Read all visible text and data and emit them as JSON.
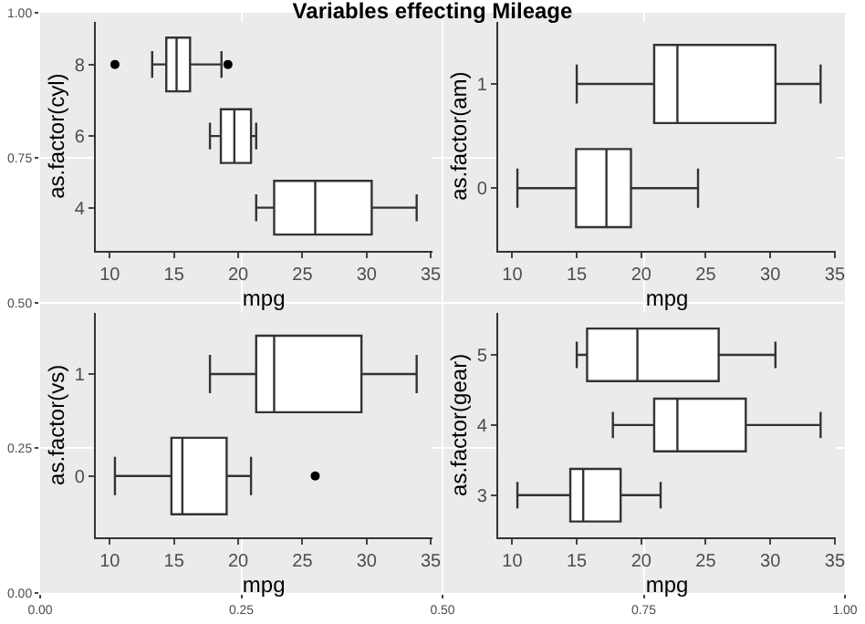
{
  "chart_data": [
    {
      "type": "scatter",
      "title": "Variables effecting Mileage",
      "xlim": [
        0,
        1
      ],
      "ylim": [
        0,
        1
      ],
      "grid": true,
      "xticks": [
        {
          "value": 0,
          "label": "0.00"
        },
        {
          "value": 0.25,
          "label": "0.25"
        },
        {
          "value": 0.5,
          "label": "0.50"
        },
        {
          "value": 0.75,
          "label": "0.75"
        },
        {
          "value": 1,
          "label": "1.00"
        }
      ],
      "yticks": [
        {
          "value": 0,
          "label": "0.00"
        },
        {
          "value": 0.25,
          "label": "0.25"
        },
        {
          "value": 0.5,
          "label": "0.50"
        },
        {
          "value": 0.75,
          "label": "0.75"
        },
        {
          "value": 1,
          "label": "1.00"
        }
      ]
    },
    {
      "type": "box",
      "orientation": "horizontal",
      "xlabel": "mpg",
      "ylabel": "as.factor(cyl)",
      "categories": [
        "8",
        "6",
        "4"
      ],
      "xlim": [
        8.9,
        35.1
      ],
      "xticks": [
        10,
        15,
        20,
        25,
        30,
        35
      ],
      "series": [
        {
          "color": "#333333",
          "boxes": [
            {
              "low": 13.3,
              "q1": 14.4,
              "median": 15.2,
              "q3": 16.25,
              "high": 18.7,
              "outliers": [
                10.4,
                19.2
              ]
            },
            {
              "low": 17.8,
              "q1": 18.65,
              "median": 19.7,
              "q3": 21.0,
              "high": 21.4
            },
            {
              "low": 21.4,
              "q1": 22.8,
              "median": 26.0,
              "q3": 30.4,
              "high": 33.9
            }
          ]
        }
      ]
    },
    {
      "type": "box",
      "orientation": "horizontal",
      "xlabel": "mpg",
      "ylabel": "as.factor(am)",
      "categories": [
        "1",
        "0"
      ],
      "xlim": [
        8.9,
        35.1
      ],
      "xticks": [
        10,
        15,
        20,
        25,
        30,
        35
      ],
      "series": [
        {
          "color": "#333333",
          "boxes": [
            {
              "low": 15.0,
              "q1": 21.0,
              "median": 22.8,
              "q3": 30.4,
              "high": 33.9
            },
            {
              "low": 10.4,
              "q1": 14.95,
              "median": 17.3,
              "q3": 19.2,
              "high": 24.4
            }
          ]
        }
      ]
    },
    {
      "type": "box",
      "orientation": "horizontal",
      "xlabel": "mpg",
      "ylabel": "as.factor(vs)",
      "categories": [
        "1",
        "0"
      ],
      "xlim": [
        8.9,
        35.1
      ],
      "xticks": [
        10,
        15,
        20,
        25,
        30,
        35
      ],
      "series": [
        {
          "color": "#333333",
          "boxes": [
            {
              "low": 17.8,
              "q1": 21.4,
              "median": 22.8,
              "q3": 29.6,
              "high": 33.9
            },
            {
              "low": 10.4,
              "q1": 14.8,
              "median": 15.65,
              "q3": 19.1,
              "high": 21.0,
              "outliers": [
                26.0
              ]
            }
          ]
        }
      ]
    },
    {
      "type": "box",
      "orientation": "horizontal",
      "xlabel": "mpg",
      "ylabel": "as.factor(gear)",
      "categories": [
        "5",
        "4",
        "3"
      ],
      "xlim": [
        8.9,
        35.1
      ],
      "xticks": [
        10,
        15,
        20,
        25,
        30,
        35
      ],
      "series": [
        {
          "color": "#333333",
          "boxes": [
            {
              "low": 15.0,
              "q1": 15.8,
              "median": 19.7,
              "q3": 26.0,
              "high": 30.4
            },
            {
              "low": 17.8,
              "q1": 21.0,
              "median": 22.8,
              "q3": 28.1,
              "high": 33.9
            },
            {
              "low": 10.4,
              "q1": 14.5,
              "median": 15.5,
              "q3": 18.4,
              "high": 21.5
            }
          ]
        }
      ]
    }
  ]
}
